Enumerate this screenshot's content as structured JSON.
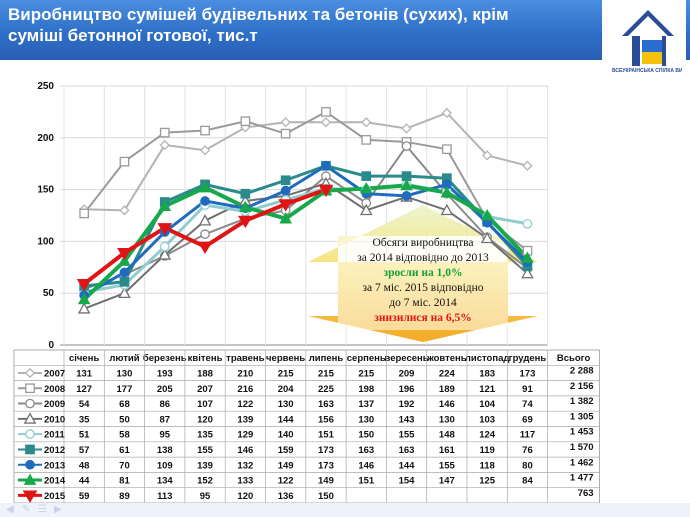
{
  "header": {
    "title": "Виробництво сумішей будівельних та бетонів (сухих), крім суміші бетонної готової, тис.т",
    "logo_text": "ВСЕУКРАЇНСЬКА СПІЛКА ВИРОБНИКІВ БУДМАТЕРІАЛІВ",
    "background": "#2f6fc8"
  },
  "callout": {
    "line1": "Обсяги виробництва",
    "line2": "за 2014 відповідно до 2013",
    "line3": "зросли на 1,0%",
    "line4": "за 7 міс. 2015 відповідно",
    "line5": "до 7 міс. 2014",
    "line6": "знизилися на 6,5%"
  },
  "footer": {
    "icons": [
      "arrow-left-icon",
      "pen-icon",
      "menu-icon",
      "arrow-right-icon"
    ]
  },
  "chart_data": {
    "type": "line",
    "categories": [
      "січень",
      "лютий",
      "березень",
      "квітень",
      "травень",
      "червень",
      "липень",
      "серпень",
      "вересень",
      "жовтень",
      "листопад",
      "грудень"
    ],
    "total_header": "Всього",
    "ylim": [
      0,
      250
    ],
    "yticks": [
      0,
      50,
      100,
      150,
      200,
      250
    ],
    "grid": true,
    "legend": "table-bottom",
    "series": [
      {
        "name": "2007",
        "values": [
          131,
          130,
          193,
          188,
          210,
          215,
          215,
          215,
          209,
          224,
          183,
          173
        ],
        "total": "2 288",
        "color": "#b4b4b4",
        "marker": "diamond-open",
        "width": 2
      },
      {
        "name": "2008",
        "values": [
          127,
          177,
          205,
          207,
          216,
          204,
          225,
          198,
          196,
          189,
          121,
          91
        ],
        "total": "2 156",
        "color": "#9a9a9a",
        "marker": "square-open",
        "width": 2
      },
      {
        "name": "2009",
        "values": [
          54,
          68,
          86,
          107,
          122,
          130,
          163,
          137,
          192,
          146,
          104,
          74
        ],
        "total": "1 382",
        "color": "#8a8a8a",
        "marker": "circle-open",
        "width": 2
      },
      {
        "name": "2010",
        "values": [
          35,
          50,
          87,
          120,
          139,
          144,
          156,
          130,
          143,
          130,
          103,
          69
        ],
        "total": "1 305",
        "color": "#707070",
        "marker": "triangle-open",
        "width": 2
      },
      {
        "name": "2011",
        "values": [
          51,
          58,
          95,
          135,
          129,
          140,
          151,
          150,
          155,
          148,
          124,
          117
        ],
        "total": "1 453",
        "color": "#8fcdd0",
        "marker": "circle-open",
        "width": 3
      },
      {
        "name": "2012",
        "values": [
          57,
          61,
          138,
          155,
          146,
          159,
          173,
          163,
          163,
          161,
          119,
          76
        ],
        "total": "1 570",
        "color": "#2a8a8c",
        "marker": "square",
        "width": 3
      },
      {
        "name": "2013",
        "values": [
          48,
          70,
          109,
          139,
          132,
          149,
          173,
          146,
          144,
          155,
          118,
          80
        ],
        "total": "1 462",
        "color": "#1f6bc0",
        "marker": "circle",
        "width": 3
      },
      {
        "name": "2014",
        "values": [
          44,
          81,
          134,
          152,
          133,
          122,
          149,
          151,
          154,
          147,
          125,
          84
        ],
        "total": "1 477",
        "color": "#16a84a",
        "marker": "triangle",
        "width": 4
      },
      {
        "name": "2015",
        "values": [
          59,
          89,
          113,
          95,
          120,
          136,
          150,
          null,
          null,
          null,
          null,
          null
        ],
        "total": "763",
        "color": "#e01414",
        "marker": "triangle-down",
        "width": 4
      }
    ]
  }
}
